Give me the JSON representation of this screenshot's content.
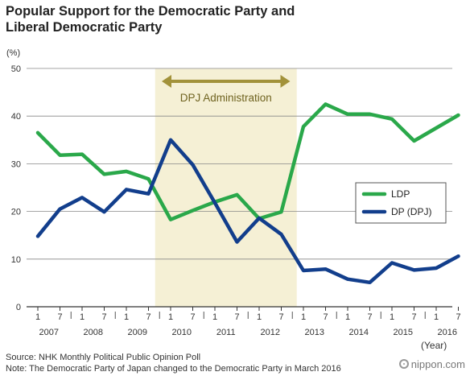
{
  "title_line1": "Popular Support for the Democratic Party and",
  "title_line2": "Liberal Democratic Party",
  "unit_label": "(%)",
  "year_unit": "(Year)",
  "source": "Source: NHK Monthly Political Public Opinion Poll",
  "note": "Note: The Democratic Party of Japan changed to the Democratic Party in March 2016",
  "brand": "nippon.com",
  "annotation": "DPJ Administration",
  "colors": {
    "ldp": "#2aa84a",
    "dp": "#123e8c",
    "shade": "#f5f0d5",
    "arrow": "#a2923a",
    "grid": "#888888"
  },
  "chart_data": {
    "type": "line",
    "ylim": [
      0,
      50
    ],
    "yticks": [
      0,
      10,
      20,
      30,
      40,
      50
    ],
    "grid": "horizontal",
    "legend_position": "right",
    "x_month_labels": [
      "1",
      "7",
      "1",
      "7",
      "1",
      "7",
      "1",
      "7",
      "1",
      "7",
      "1",
      "7",
      "1",
      "7",
      "1",
      "7",
      "1",
      "7",
      "1",
      "7"
    ],
    "x_year_labels": [
      "2007",
      "2008",
      "2009",
      "2010",
      "2011",
      "2012",
      "2013",
      "2014",
      "2015",
      "2016"
    ],
    "shaded_range": [
      "2009 7",
      "2012 7"
    ],
    "series": [
      {
        "name": "LDP",
        "values": [
          36.5,
          31.8,
          32.0,
          27.8,
          28.4,
          26.8,
          18.3,
          20.2,
          22.0,
          23.5,
          18.5,
          19.9,
          37.8,
          42.5,
          40.4,
          40.4,
          39.4,
          34.8,
          37.5,
          40.2
        ]
      },
      {
        "name": "DP (DPJ)",
        "values": [
          14.8,
          20.5,
          22.9,
          19.9,
          24.6,
          23.7,
          35.0,
          29.8,
          21.8,
          13.6,
          18.6,
          15.2,
          7.6,
          7.9,
          5.8,
          5.1,
          9.2,
          7.7,
          8.1,
          10.6
        ]
      }
    ]
  }
}
